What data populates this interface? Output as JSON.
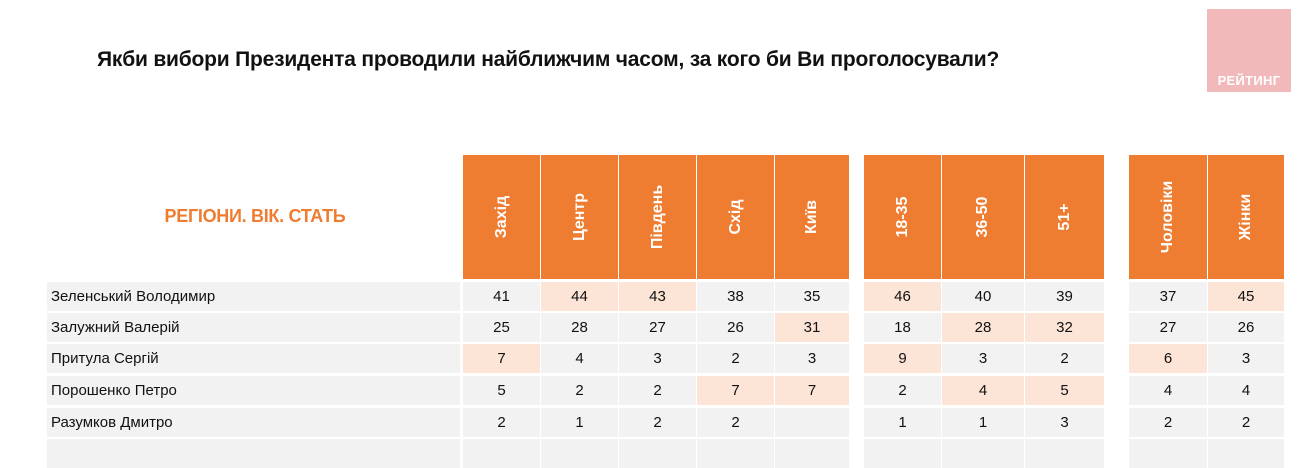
{
  "title": "Якби вибори Президента проводили найближчим часом, за кого би Ви проголосували?",
  "logo": {
    "text": "РЕЙТИНГ",
    "color": "#f2b9ba"
  },
  "section_label": "РЕГІОНИ. ВІК. СТАТЬ",
  "colors": {
    "header": "#ee7c31",
    "highlight": "#fce4d6",
    "cell": "#f2f2f2"
  },
  "column_groups": [
    {
      "name": "regions",
      "columns": [
        "Захід",
        "Центр",
        "Південь",
        "Схід",
        "Київ"
      ]
    },
    {
      "name": "age",
      "columns": [
        "18-35",
        "36-50",
        "51+"
      ]
    },
    {
      "name": "gender",
      "columns": [
        "Чоловіки",
        "Жінки"
      ]
    }
  ],
  "columns": [
    "Захід",
    "Центр",
    "Південь",
    "Схід",
    "Київ",
    "18-35",
    "36-50",
    "51+",
    "Чоловіки",
    "Жінки"
  ],
  "rows": [
    {
      "name": "Зеленський Володимир",
      "values": [
        "41",
        "44",
        "43",
        "38",
        "35",
        "46",
        "40",
        "39",
        "37",
        "45"
      ],
      "highlight": [
        false,
        true,
        true,
        false,
        false,
        true,
        false,
        false,
        false,
        true
      ]
    },
    {
      "name": "Залужний Валерій",
      "values": [
        "25",
        "28",
        "27",
        "26",
        "31",
        "18",
        "28",
        "32",
        "27",
        "26"
      ],
      "highlight": [
        false,
        false,
        false,
        false,
        true,
        false,
        true,
        true,
        false,
        false
      ]
    },
    {
      "name": "Притула Сергій",
      "values": [
        "7",
        "4",
        "3",
        "2",
        "3",
        "9",
        "3",
        "2",
        "6",
        "3"
      ],
      "highlight": [
        true,
        false,
        false,
        false,
        false,
        true,
        false,
        false,
        true,
        false
      ]
    },
    {
      "name": "Порошенко Петро",
      "values": [
        "5",
        "2",
        "2",
        "7",
        "7",
        "2",
        "4",
        "5",
        "4",
        "4"
      ],
      "highlight": [
        false,
        false,
        false,
        true,
        true,
        false,
        true,
        true,
        false,
        false
      ]
    },
    {
      "name": "Разумков Дмитро",
      "values": [
        "2",
        "1",
        "2",
        "2",
        "",
        "1",
        "1",
        "3",
        "2",
        "2"
      ],
      "highlight": [
        false,
        false,
        false,
        false,
        false,
        false,
        false,
        false,
        false,
        false
      ]
    }
  ],
  "chart_data": {
    "type": "table",
    "title": "Якби вибори Президента проводили найближчим часом, за кого би Ви проголосували?",
    "subtitle": "РЕГІОНИ. ВІК. СТАТЬ",
    "categories": [
      "Захід",
      "Центр",
      "Південь",
      "Схід",
      "Київ",
      "18-35",
      "36-50",
      "51+",
      "Чоловіки",
      "Жінки"
    ],
    "series": [
      {
        "name": "Зеленський Володимир",
        "values": [
          41,
          44,
          43,
          38,
          35,
          46,
          40,
          39,
          37,
          45
        ]
      },
      {
        "name": "Залужний Валерій",
        "values": [
          25,
          28,
          27,
          26,
          31,
          18,
          28,
          32,
          27,
          26
        ]
      },
      {
        "name": "Притула Сергій",
        "values": [
          7,
          4,
          3,
          2,
          3,
          9,
          3,
          2,
          6,
          3
        ]
      },
      {
        "name": "Порошенко Петро",
        "values": [
          5,
          2,
          2,
          7,
          7,
          2,
          4,
          5,
          4,
          4
        ]
      },
      {
        "name": "Разумков Дмитро",
        "values": [
          2,
          1,
          2,
          2,
          null,
          1,
          1,
          3,
          2,
          2
        ]
      }
    ]
  }
}
